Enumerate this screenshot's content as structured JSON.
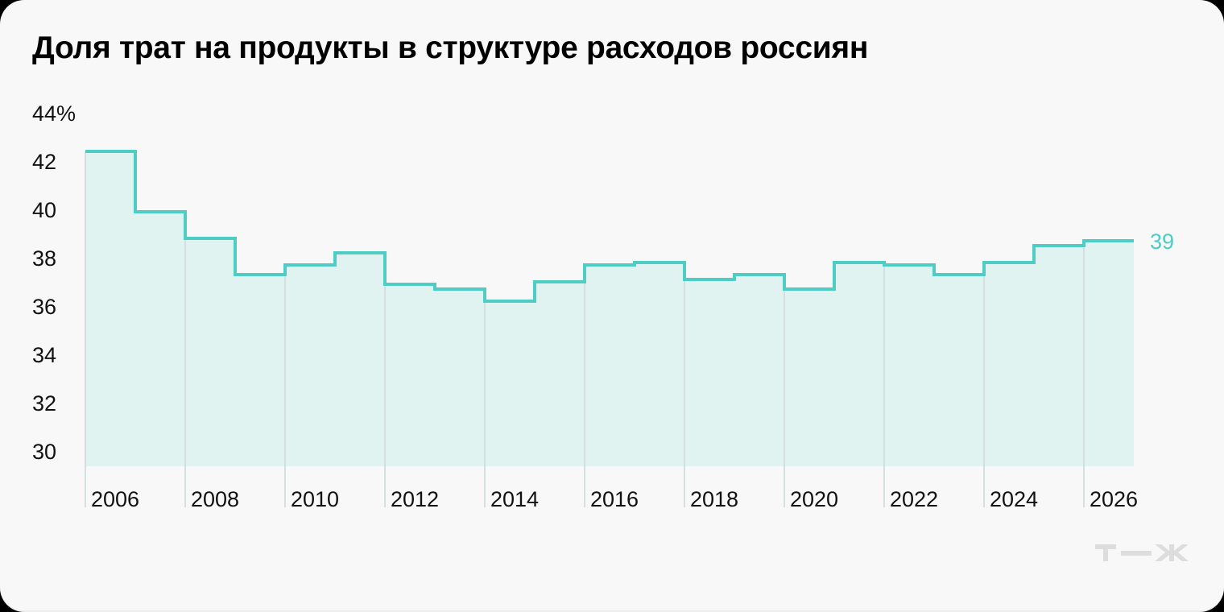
{
  "title": "Доля трат на продукты в структуре расходов россиян",
  "colors": {
    "line": "#4ecdc4",
    "fill": "#e0f3f1",
    "grid": "#d3e0df",
    "background": "#f8f8f8",
    "text": "#111111",
    "logo": "#dddddd"
  },
  "end_label": "39",
  "logo": "т—ж",
  "chart_data": {
    "type": "line",
    "step": true,
    "title": "Доля трат на продукты в структуре расходов россиян",
    "xlabel": "",
    "ylabel": "%",
    "ylim": [
      29.4,
      44
    ],
    "y_ticks": [
      "44%",
      "42",
      "40",
      "38",
      "36",
      "34",
      "32",
      "30"
    ],
    "x_ticks": [
      "2006",
      "2008",
      "2010",
      "2012",
      "2014",
      "2016",
      "2018",
      "2020",
      "2022",
      "2024",
      "2026"
    ],
    "x": [
      2006,
      2007,
      2008,
      2009,
      2010,
      2011,
      2012,
      2013,
      2014,
      2015,
      2016,
      2017,
      2018,
      2019,
      2020,
      2021,
      2022,
      2023,
      2024,
      2025,
      2026
    ],
    "values": [
      42.4,
      39.9,
      38.8,
      37.3,
      37.7,
      38.2,
      36.9,
      36.7,
      36.2,
      37.0,
      37.7,
      37.8,
      37.1,
      37.3,
      36.7,
      37.8,
      37.7,
      37.3,
      37.8,
      38.5,
      38.7
    ],
    "annotations": [
      {
        "x": 2026,
        "text": "39"
      }
    ],
    "grid": "vertical lines every 2 years",
    "legend": "none"
  }
}
